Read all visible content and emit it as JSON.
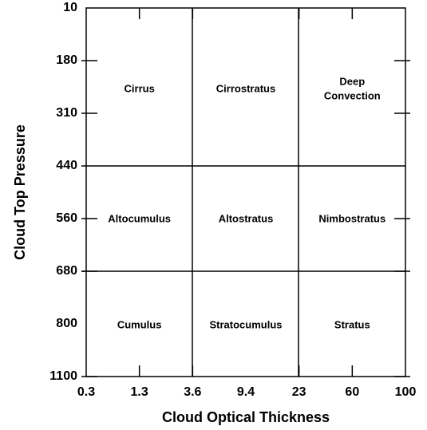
{
  "y_axis": {
    "title": "Cloud Top Pressure",
    "ticks": [
      "10",
      "180",
      "310",
      "440",
      "560",
      "680",
      "800",
      "1100"
    ]
  },
  "x_axis": {
    "title": "Cloud Optical Thickness",
    "ticks": [
      "0.3",
      "1.3",
      "3.6",
      "9.4",
      "23",
      "60",
      "100"
    ]
  },
  "cells": [
    [
      [
        "Cirrus"
      ],
      [
        "Cirrostratus"
      ],
      [
        "Deep",
        "Convection"
      ]
    ],
    [
      [
        "Altocumulus"
      ],
      [
        "Altostratus"
      ],
      [
        "Nimbostratus"
      ]
    ],
    [
      [
        "Cumulus"
      ],
      [
        "Stratocumulus"
      ],
      [
        "Stratus"
      ]
    ]
  ]
}
